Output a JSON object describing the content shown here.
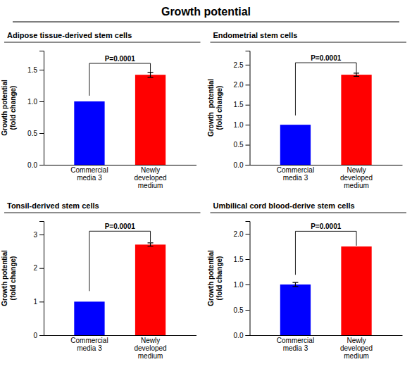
{
  "title": "Growth potential",
  "chart_data": [
    {
      "type": "bar",
      "title": "Adipose tissue-derived stem cells",
      "categories": [
        "Commercial\nmedia 3",
        "Newly\ndeveloped\nmedium"
      ],
      "values": [
        1.0,
        1.42
      ],
      "errors": [
        0.0,
        0.04
      ],
      "colors": [
        "#0000FF",
        "#FF0000"
      ],
      "ylabel": "Growth potential\n(fold change)",
      "ylim": [
        0,
        1.8
      ],
      "yticks": [
        {
          "value": 0.0,
          "label": "0.0"
        },
        0.5,
        {
          "value": 1.0,
          "label": "1.0"
        },
        1.5
      ],
      "annotations": [
        {
          "text": "P=0.0001",
          "y": 1.6
        }
      ]
    },
    {
      "type": "bar",
      "title": "Endometrial stem cells",
      "categories": [
        "Commercial\nmedia 3",
        "Newly\ndeveloped\nmedium"
      ],
      "values": [
        1.0,
        2.25
      ],
      "errors": [
        0.0,
        0.04
      ],
      "colors": [
        "#0000FF",
        "#FF0000"
      ],
      "ylabel": "Growth  potential\n(fold change)",
      "ylim": [
        0,
        2.85
      ],
      "yticks": [
        {
          "value": 0.0,
          "label": "0.0"
        },
        0.5,
        {
          "value": 1.0,
          "label": "1.0"
        },
        1.5,
        {
          "value": 2.0,
          "label": "2.0"
        },
        2.5
      ],
      "annotations": [
        {
          "text": "P=0.0001",
          "y": 2.55
        }
      ]
    },
    {
      "type": "bar",
      "title": "Tonsil-derived stem cells",
      "categories": [
        "Commercial\nmedia 3",
        "Newly\ndeveloped\nmedium"
      ],
      "values": [
        1.0,
        2.7
      ],
      "errors": [
        0.0,
        0.05
      ],
      "colors": [
        "#0000FF",
        "#FF0000"
      ],
      "ylabel": "Growth potential\n(fold change)",
      "ylim": [
        0,
        3.4
      ],
      "yticks": [
        0,
        1,
        2,
        3
      ],
      "annotations": [
        {
          "text": "P=0.0001",
          "y": 3.1
        }
      ]
    },
    {
      "type": "bar",
      "title": "Umbilical cord blood-derive stem cells",
      "categories": [
        "Commercial\nmedia 3",
        "Newly\ndeveloped\nmedium"
      ],
      "values": [
        1.0,
        1.75
      ],
      "errors": [
        0.04,
        0.0
      ],
      "colors": [
        "#0000FF",
        "#FF0000"
      ],
      "ylabel": "Growth potential\n(fold change)",
      "ylim": [
        0,
        2.25
      ],
      "yticks": [
        {
          "value": 0.0,
          "label": "0.0"
        },
        0.5,
        {
          "value": 1.0,
          "label": "1.0"
        },
        1.5,
        {
          "value": 2.0,
          "label": "2.0"
        }
      ],
      "annotations": [
        {
          "text": "P=0.0001",
          "y": 2.05
        }
      ]
    }
  ]
}
